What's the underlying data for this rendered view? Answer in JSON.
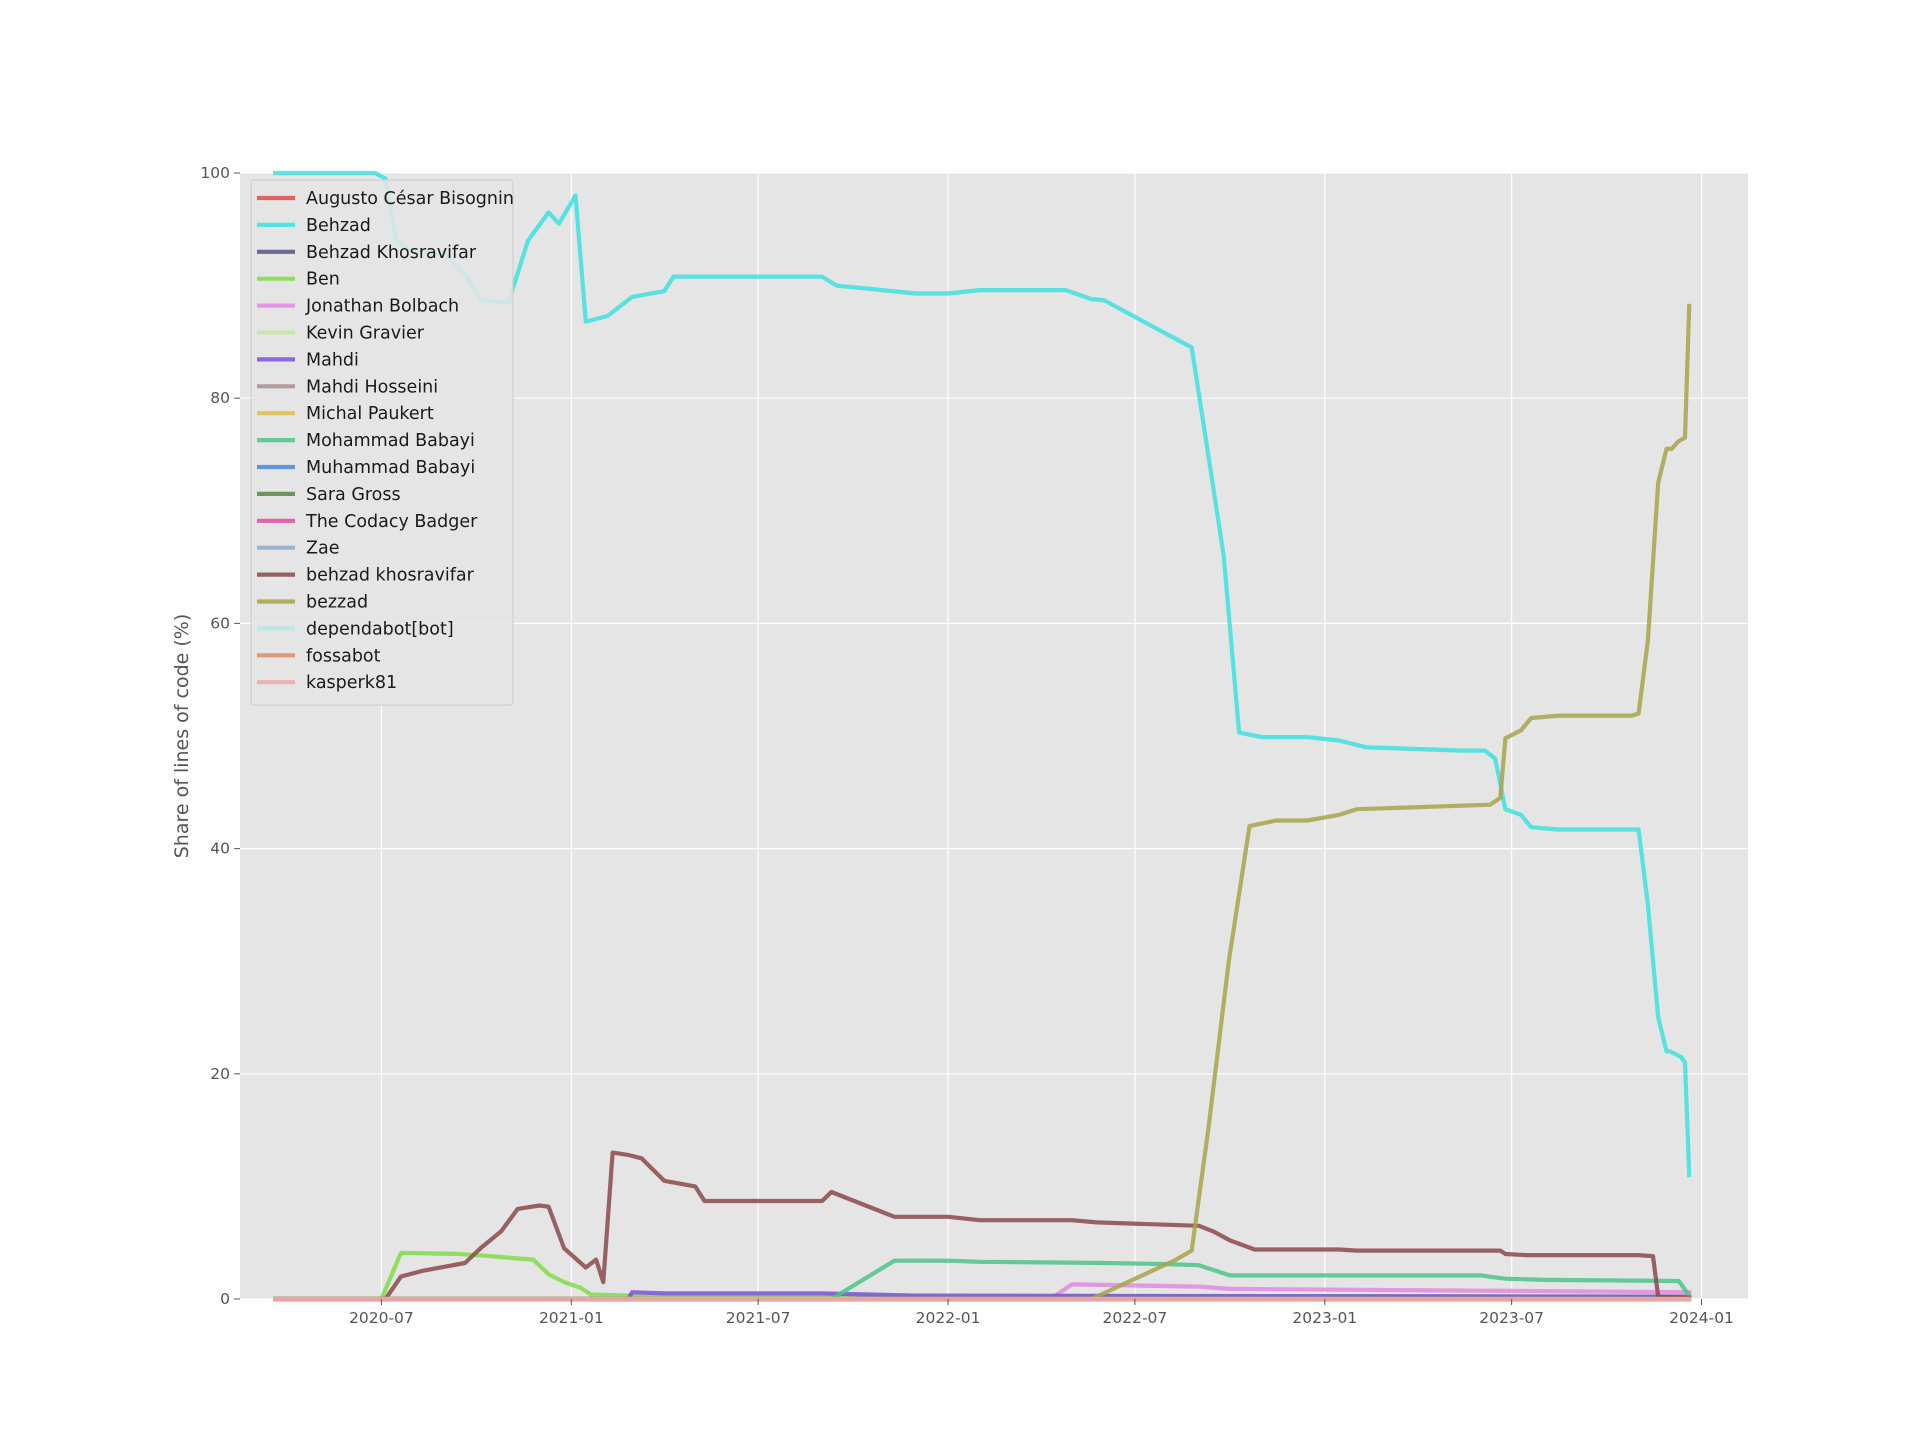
{
  "chart_data": {
    "type": "line",
    "title": "",
    "xlabel": "",
    "ylabel": "Share of lines of code (%)",
    "ylim": [
      0,
      100
    ],
    "xlim": [
      "2020-02-15",
      "2024-02-15"
    ],
    "yticks": [
      0,
      20,
      40,
      60,
      80,
      100
    ],
    "xticks": [
      "2020-07",
      "2021-01",
      "2021-07",
      "2022-01",
      "2022-07",
      "2023-01",
      "2023-07",
      "2024-01"
    ],
    "grid": true,
    "legend_position": "upper-left",
    "series": [
      {
        "name": "Augusto César Bisognin",
        "color": "#e24a4a",
        "points": [
          [
            "2020-03-20",
            0
          ],
          [
            "2023-12-20",
            0
          ]
        ]
      },
      {
        "name": "Behzad",
        "color": "#3ee0e0",
        "points": [
          [
            "2020-03-20",
            100
          ],
          [
            "2020-06-25",
            100
          ],
          [
            "2020-07-05",
            99.5
          ],
          [
            "2020-07-15",
            94
          ],
          [
            "2020-08-01",
            93
          ],
          [
            "2020-09-01",
            92.8
          ],
          [
            "2020-09-20",
            91
          ],
          [
            "2020-10-05",
            88.7
          ],
          [
            "2020-11-01",
            88.5
          ],
          [
            "2020-11-20",
            94
          ],
          [
            "2020-12-10",
            96.5
          ],
          [
            "2020-12-20",
            95.5
          ],
          [
            "2021-01-05",
            98
          ],
          [
            "2021-01-15",
            86.8
          ],
          [
            "2021-02-05",
            87.3
          ],
          [
            "2021-03-01",
            89
          ],
          [
            "2021-04-01",
            89.5
          ],
          [
            "2021-04-10",
            90.8
          ],
          [
            "2021-09-01",
            90.8
          ],
          [
            "2021-09-15",
            90
          ],
          [
            "2021-12-01",
            89.3
          ],
          [
            "2022-01-01",
            89.3
          ],
          [
            "2022-02-01",
            89.6
          ],
          [
            "2022-04-25",
            89.6
          ],
          [
            "2022-05-20",
            88.8
          ],
          [
            "2022-06-01",
            88.7
          ],
          [
            "2022-08-25",
            84.5
          ],
          [
            "2022-09-10",
            75
          ],
          [
            "2022-09-25",
            66
          ],
          [
            "2022-10-10",
            50.3
          ],
          [
            "2022-11-01",
            49.9
          ],
          [
            "2022-12-15",
            49.9
          ],
          [
            "2023-01-15",
            49.6
          ],
          [
            "2023-02-10",
            49
          ],
          [
            "2023-05-15",
            48.7
          ],
          [
            "2023-06-05",
            48.7
          ],
          [
            "2023-06-15",
            48
          ],
          [
            "2023-06-25",
            43.5
          ],
          [
            "2023-07-10",
            43
          ],
          [
            "2023-07-20",
            41.9
          ],
          [
            "2023-08-15",
            41.7
          ],
          [
            "2023-11-01",
            41.7
          ],
          [
            "2023-11-10",
            35
          ],
          [
            "2023-11-20",
            25
          ],
          [
            "2023-11-28",
            22
          ],
          [
            "2023-12-01",
            22
          ],
          [
            "2023-12-12",
            21.5
          ],
          [
            "2023-12-16",
            21
          ],
          [
            "2023-12-20",
            11
          ]
        ]
      },
      {
        "name": "Behzad Khosravifar",
        "color": "#555588",
        "points": [
          [
            "2020-03-20",
            0
          ],
          [
            "2023-12-20",
            0
          ]
        ]
      },
      {
        "name": "Ben",
        "color": "#7fde48",
        "points": [
          [
            "2020-03-20",
            0
          ],
          [
            "2020-07-01",
            0
          ],
          [
            "2020-07-20",
            4.1
          ],
          [
            "2020-09-15",
            4
          ],
          [
            "2020-10-15",
            3.8
          ],
          [
            "2020-11-25",
            3.5
          ],
          [
            "2020-12-10",
            2.2
          ],
          [
            "2020-12-25",
            1.5
          ],
          [
            "2021-01-10",
            1
          ],
          [
            "2021-01-20",
            0.4
          ],
          [
            "2021-03-01",
            0.3
          ],
          [
            "2023-12-20",
            0.2
          ]
        ]
      },
      {
        "name": "Jonathan Bolbach",
        "color": "#e08ae0",
        "points": [
          [
            "2020-03-20",
            0
          ],
          [
            "2022-04-10",
            0
          ],
          [
            "2022-05-01",
            1.3
          ],
          [
            "2022-09-01",
            1.1
          ],
          [
            "2022-10-01",
            0.9
          ],
          [
            "2023-12-20",
            0.6
          ]
        ]
      },
      {
        "name": "Kevin Gravier",
        "color": "#c7e8a2",
        "points": [
          [
            "2020-03-20",
            0
          ],
          [
            "2023-12-20",
            0
          ]
        ]
      },
      {
        "name": "Mahdi",
        "color": "#7b52e0",
        "points": [
          [
            "2020-03-20",
            0
          ],
          [
            "2021-02-25",
            0
          ],
          [
            "2021-03-01",
            0.6
          ],
          [
            "2021-04-01",
            0.5
          ],
          [
            "2021-09-01",
            0.5
          ],
          [
            "2021-12-01",
            0.3
          ],
          [
            "2023-12-20",
            0.2
          ]
        ]
      },
      {
        "name": "Mahdi Hosseini",
        "color": "#a89090",
        "points": [
          [
            "2020-03-20",
            0
          ],
          [
            "2023-12-20",
            0
          ]
        ]
      },
      {
        "name": "Michal Paukert",
        "color": "#e0c040",
        "points": [
          [
            "2020-03-20",
            0
          ],
          [
            "2023-12-20",
            0
          ]
        ]
      },
      {
        "name": "Mohammad Babayi",
        "color": "#4cc488",
        "points": [
          [
            "2020-03-20",
            0
          ],
          [
            "2021-09-10",
            0
          ],
          [
            "2021-11-10",
            3.4
          ],
          [
            "2022-01-01",
            3.4
          ],
          [
            "2022-02-01",
            3.3
          ],
          [
            "2022-06-01",
            3.2
          ],
          [
            "2022-08-01",
            3.1
          ],
          [
            "2022-09-01",
            3
          ],
          [
            "2022-10-01",
            2.1
          ],
          [
            "2023-06-01",
            2.1
          ],
          [
            "2023-06-25",
            1.8
          ],
          [
            "2023-08-01",
            1.7
          ],
          [
            "2023-12-10",
            1.6
          ],
          [
            "2023-12-20",
            0.3
          ]
        ]
      },
      {
        "name": "Muhammad Babayi",
        "color": "#4a88e0",
        "points": [
          [
            "2020-03-20",
            0
          ],
          [
            "2023-12-20",
            0
          ]
        ]
      },
      {
        "name": "Sara Gross",
        "color": "#558844",
        "points": [
          [
            "2020-03-20",
            0
          ],
          [
            "2023-12-20",
            0
          ]
        ]
      },
      {
        "name": "The Codacy Badger",
        "color": "#e04aa0",
        "points": [
          [
            "2020-03-20",
            0
          ],
          [
            "2023-12-20",
            0
          ]
        ]
      },
      {
        "name": "Zae",
        "color": "#88aacc",
        "points": [
          [
            "2020-03-20",
            0
          ],
          [
            "2023-12-20",
            0
          ]
        ]
      },
      {
        "name": "behzad khosravifar",
        "color": "#8b4a4a",
        "points": [
          [
            "2020-03-20",
            0
          ],
          [
            "2020-07-05",
            0
          ],
          [
            "2020-07-20",
            2
          ],
          [
            "2020-08-10",
            2.5
          ],
          [
            "2020-09-20",
            3.2
          ],
          [
            "2020-10-05",
            4.5
          ],
          [
            "2020-10-25",
            6
          ],
          [
            "2020-11-10",
            8
          ],
          [
            "2020-12-01",
            8.3
          ],
          [
            "2020-12-10",
            8.2
          ],
          [
            "2020-12-25",
            4.5
          ],
          [
            "2021-01-15",
            2.8
          ],
          [
            "2021-01-25",
            3.5
          ],
          [
            "2021-02-01",
            1.5
          ],
          [
            "2021-02-10",
            13
          ],
          [
            "2021-02-25",
            12.8
          ],
          [
            "2021-03-10",
            12.5
          ],
          [
            "2021-04-01",
            10.5
          ],
          [
            "2021-05-01",
            10
          ],
          [
            "2021-05-10",
            8.7
          ],
          [
            "2021-09-01",
            8.7
          ],
          [
            "2021-09-10",
            9.5
          ],
          [
            "2021-11-10",
            7.3
          ],
          [
            "2022-01-01",
            7.3
          ],
          [
            "2022-02-01",
            7
          ],
          [
            "2022-05-01",
            7
          ],
          [
            "2022-05-25",
            6.8
          ],
          [
            "2022-09-01",
            6.5
          ],
          [
            "2022-09-15",
            6
          ],
          [
            "2022-10-01",
            5.2
          ],
          [
            "2022-10-25",
            4.4
          ],
          [
            "2023-01-15",
            4.4
          ],
          [
            "2023-02-01",
            4.3
          ],
          [
            "2023-06-20",
            4.3
          ],
          [
            "2023-06-25",
            4
          ],
          [
            "2023-07-15",
            3.9
          ],
          [
            "2023-11-01",
            3.9
          ],
          [
            "2023-11-15",
            3.8
          ],
          [
            "2023-11-20",
            0.2
          ],
          [
            "2023-12-20",
            0.1
          ]
        ]
      },
      {
        "name": "bezzad",
        "color": "#a8a44a",
        "points": [
          [
            "2020-03-20",
            0
          ],
          [
            "2022-05-20",
            0
          ],
          [
            "2022-08-10",
            3.5
          ],
          [
            "2022-08-25",
            4.3
          ],
          [
            "2022-09-10",
            15
          ],
          [
            "2022-09-30",
            30
          ],
          [
            "2022-10-20",
            42
          ],
          [
            "2022-11-15",
            42.5
          ],
          [
            "2022-12-15",
            42.5
          ],
          [
            "2023-01-15",
            43
          ],
          [
            "2023-02-01",
            43.5
          ],
          [
            "2023-06-10",
            43.9
          ],
          [
            "2023-06-20",
            44.5
          ],
          [
            "2023-06-25",
            49.8
          ],
          [
            "2023-07-10",
            50.5
          ],
          [
            "2023-07-20",
            51.6
          ],
          [
            "2023-08-15",
            51.8
          ],
          [
            "2023-10-25",
            51.8
          ],
          [
            "2023-11-01",
            52
          ],
          [
            "2023-11-10",
            58.5
          ],
          [
            "2023-11-20",
            72.5
          ],
          [
            "2023-11-28",
            75.5
          ],
          [
            "2023-12-03",
            75.5
          ],
          [
            "2023-12-10",
            76.2
          ],
          [
            "2023-12-16",
            76.5
          ],
          [
            "2023-12-20",
            88.2
          ]
        ]
      },
      {
        "name": "dependabot[bot]",
        "color": "#b4e8e8",
        "points": [
          [
            "2020-03-20",
            0
          ],
          [
            "2023-12-20",
            0
          ]
        ]
      },
      {
        "name": "fossabot",
        "color": "#e08a66",
        "points": [
          [
            "2020-03-20",
            0
          ],
          [
            "2023-12-20",
            0
          ]
        ]
      },
      {
        "name": "kasperk81",
        "color": "#e8aaaa",
        "points": [
          [
            "2020-03-20",
            0
          ],
          [
            "2023-12-20",
            0
          ]
        ]
      }
    ]
  }
}
